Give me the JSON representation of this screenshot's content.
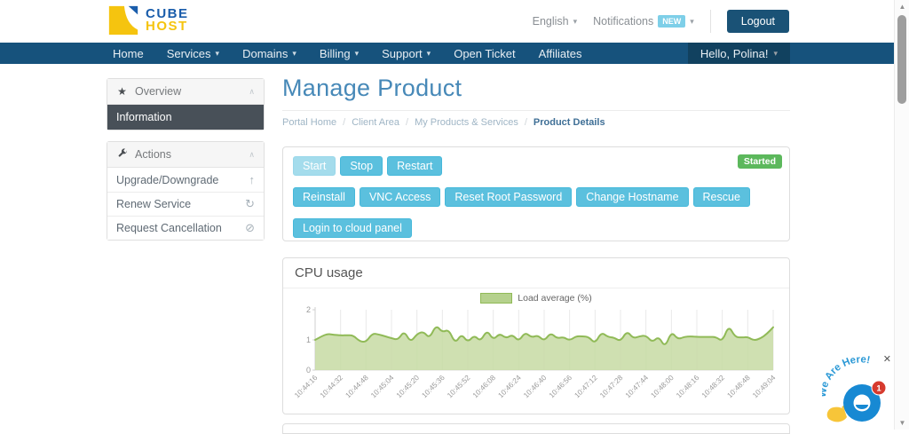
{
  "header": {
    "logo_line1": "CUBE",
    "logo_line2": "HOST",
    "language": "English",
    "notifications_label": "Notifications",
    "notifications_badge": "NEW",
    "logout_label": "Logout"
  },
  "navbar": {
    "items": [
      {
        "label": "Home",
        "dropdown": false
      },
      {
        "label": "Services",
        "dropdown": true
      },
      {
        "label": "Domains",
        "dropdown": true
      },
      {
        "label": "Billing",
        "dropdown": true
      },
      {
        "label": "Support",
        "dropdown": true
      },
      {
        "label": "Open Ticket",
        "dropdown": false
      },
      {
        "label": "Affiliates",
        "dropdown": false
      }
    ],
    "user_label": "Hello, Polina!"
  },
  "sidebar": {
    "overview": {
      "title": "Overview",
      "active_item": "Information"
    },
    "actions": {
      "title": "Actions",
      "items": [
        {
          "label": "Upgrade/Downgrade",
          "icon": "upgrade-arrow-icon"
        },
        {
          "label": "Renew Service",
          "icon": "refresh-icon"
        },
        {
          "label": "Request Cancellation",
          "icon": "ban-icon"
        }
      ]
    }
  },
  "main": {
    "page_title": "Manage Product",
    "breadcrumb": [
      "Portal Home",
      "Client Area",
      "My Products & Services",
      "Product Details"
    ],
    "status_badge": "Started",
    "power_buttons": [
      {
        "label": "Start",
        "disabled": true
      },
      {
        "label": "Stop",
        "disabled": false
      },
      {
        "label": "Restart",
        "disabled": false
      }
    ],
    "manage_buttons": [
      "Reinstall",
      "VNC Access",
      "Reset Root Password",
      "Change Hostname",
      "Rescue"
    ],
    "cloud_panel_button": "Login to cloud panel",
    "cpu_panel_title": "CPU usage"
  },
  "chart_data": {
    "type": "area",
    "title": "CPU usage",
    "legend": "Load average (%)",
    "legend_position": "top-center",
    "ylim": [
      0,
      2
    ],
    "yticks": [
      0,
      1,
      2
    ],
    "grid": "vertical",
    "line_color": "#90ba57",
    "fill_color": "#c7dba3",
    "x": [
      "10:44:16",
      "10:44:32",
      "10:44:48",
      "10:45:04",
      "10:45:20",
      "10:45:36",
      "10:45:52",
      "10:46:08",
      "10:46:24",
      "10:46:40",
      "10:46:56",
      "10:47:12",
      "10:47:28",
      "10:47:44",
      "10:48:00",
      "10:48:16",
      "10:48:32",
      "10:48:48",
      "10:49:04"
    ],
    "values": [
      1.0,
      1.12,
      1.2,
      1.17,
      1.15,
      1.16,
      1.15,
      0.95,
      0.93,
      1.22,
      1.18,
      1.12,
      1.06,
      1.0,
      1.3,
      0.92,
      1.2,
      1.28,
      1.05,
      1.5,
      1.25,
      1.35,
      0.88,
      1.2,
      0.92,
      1.16,
      0.95,
      1.33,
      1.0,
      1.22,
      1.05,
      1.18,
      0.95,
      1.26,
      1.08,
      1.16,
      0.96,
      1.24,
      1.05,
      1.1,
      0.98,
      1.12,
      1.12,
      1.1,
      0.88,
      1.26,
      1.1,
      1.08,
      0.95,
      1.3,
      1.05,
      1.12,
      1.15,
      0.92,
      1.12,
      0.75,
      1.28,
      1.02,
      1.1,
      1.12,
      1.1,
      1.1,
      1.1,
      1.1,
      0.95,
      1.48,
      1.1,
      1.08,
      1.1,
      0.98,
      1.05,
      1.2,
      1.42
    ]
  },
  "chat_widget": {
    "text": "We Are Here!",
    "badge": "1",
    "close": "✕"
  },
  "scrollbar": {
    "up": "▲",
    "down": "▼"
  },
  "colors": {
    "navbar": "#16527c",
    "accent_button": "#5bc0de",
    "status_green": "#5cb85c",
    "brand_blue": "#1a5dab",
    "brand_yellow": "#f5c40f",
    "chart_line": "#90ba57",
    "chart_fill": "#c7dba3"
  }
}
